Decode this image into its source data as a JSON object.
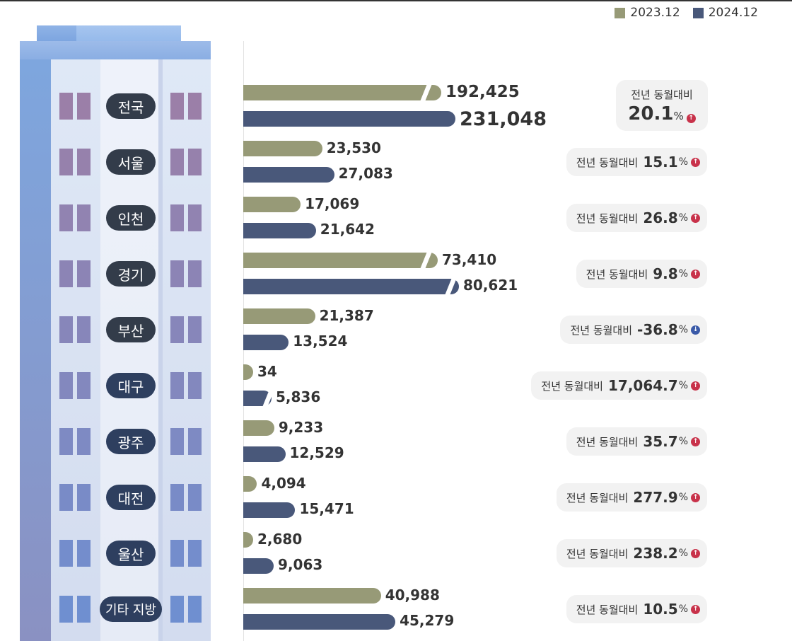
{
  "chart_data": {
    "type": "bar",
    "orientation": "horizontal",
    "legend_position": "top-right",
    "categories": [
      "전국",
      "서울",
      "인천",
      "경기",
      "부산",
      "대구",
      "광주",
      "대전",
      "울산",
      "기타 지방"
    ],
    "series": [
      {
        "name": "2023.12",
        "color": "#979a77",
        "values": [
          192425,
          23530,
          17069,
          73410,
          21387,
          34,
          9233,
          4094,
          2680,
          40988
        ],
        "labels": [
          "192,425",
          "23,530",
          "17,069",
          "73,410",
          "21,387",
          "34",
          "9,233",
          "4,094",
          "2,680",
          "40,988"
        ]
      },
      {
        "name": "2024.12",
        "color": "#49587a",
        "values": [
          231048,
          27083,
          21642,
          80621,
          13524,
          5836,
          12529,
          15471,
          9063,
          45279
        ],
        "labels": [
          "231,048",
          "27,083",
          "21,642",
          "80,621",
          "13,524",
          "5,836",
          "12,529",
          "15,471",
          "9,063",
          "45,279"
        ]
      }
    ],
    "yoy_label": "전년 동월대비",
    "yoy_unit": "%",
    "yoy": [
      {
        "value": "20.1",
        "dir": "up"
      },
      {
        "value": "15.1",
        "dir": "up"
      },
      {
        "value": "26.8",
        "dir": "up"
      },
      {
        "value": "9.8",
        "dir": "up"
      },
      {
        "value": "-36.8",
        "dir": "down"
      },
      {
        "value": "17,064.7",
        "dir": "up"
      },
      {
        "value": "35.7",
        "dir": "up"
      },
      {
        "value": "277.9",
        "dir": "up"
      },
      {
        "value": "238.2",
        "dir": "up"
      },
      {
        "value": "10.5",
        "dir": "up"
      }
    ],
    "axis_breaks": [
      "전국",
      "경기",
      "대구"
    ]
  },
  "colors": {
    "up": "#c8324a",
    "down": "#3a5aa8",
    "window_top": "#9b7fa8",
    "window_bottom": "#6f8fd0"
  }
}
